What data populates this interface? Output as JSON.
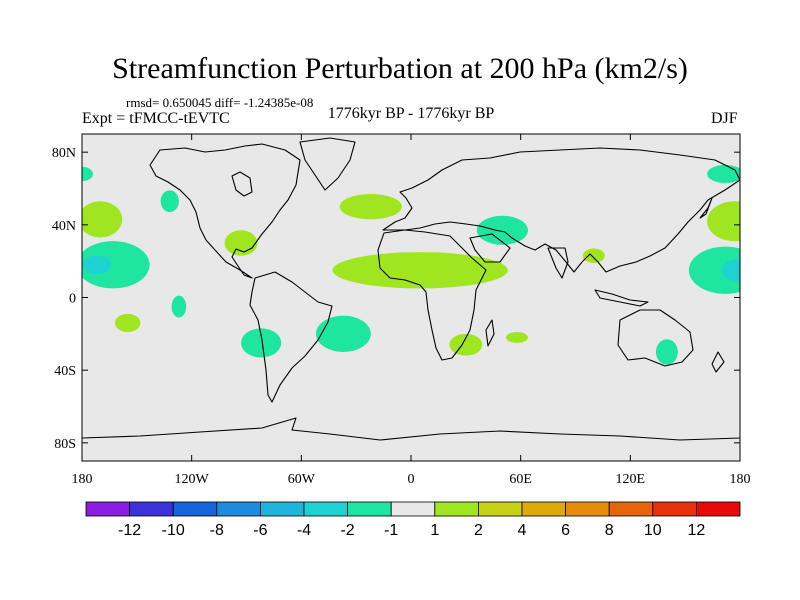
{
  "title": "Streamfunction Perturbation at 200 hPa (km2/s)",
  "stats": {
    "text": "rmsd= 0.650045 diff= -1.24385e-08"
  },
  "left_label": "Expt = tFMCC-tEVTC",
  "center_label": "1776kyr BP - 1776kyr BP",
  "right_label": "DJF",
  "colors": {
    "ocean_land_fill": "#e8e8e8",
    "neutral": "#e8e8e8",
    "positive_light": "#a0e020",
    "negative_light": "#20e0a0",
    "negative_mid": "#20d0d0",
    "outline": "#000000"
  },
  "axes": {
    "lon_ticks": [
      {
        "value": -180,
        "label": "180"
      },
      {
        "value": -120,
        "label": "120W"
      },
      {
        "value": -60,
        "label": "60W"
      },
      {
        "value": 0,
        "label": "0"
      },
      {
        "value": 60,
        "label": "60E"
      },
      {
        "value": 120,
        "label": "120E"
      },
      {
        "value": 180,
        "label": "180"
      }
    ],
    "lat_ticks": [
      {
        "value": 80,
        "label": "80N"
      },
      {
        "value": 40,
        "label": "40N"
      },
      {
        "value": 0,
        "label": "0"
      },
      {
        "value": -40,
        "label": "40S"
      },
      {
        "value": -80,
        "label": "80S"
      }
    ],
    "lon_range": [
      -180,
      180
    ],
    "lat_range": [
      -90,
      90
    ]
  },
  "chart_data": {
    "type": "heatmap",
    "title": "Streamfunction Perturbation at 200 hPa (km2/s)",
    "projection": "cylindrical equidistant",
    "season": "DJF",
    "contour_levels": [
      -12,
      -10,
      -8,
      -6,
      -4,
      -2,
      -1,
      1,
      2,
      4,
      6,
      8,
      10,
      12
    ],
    "colorbar_colors": [
      "#8a1ee0",
      "#3c32dc",
      "#1464dc",
      "#1e8cdc",
      "#1eb4dc",
      "#1ed2d2",
      "#1ee6a0",
      "#e8e8e8",
      "#a0e620",
      "#c8d214",
      "#dcaa0a",
      "#e68c0a",
      "#e6640a",
      "#e6320a",
      "#e60a0a"
    ],
    "colorbar_labels": [
      "-12",
      "-10",
      "-8",
      "-6",
      "-4",
      "-2",
      "-1",
      "1",
      "2",
      "4",
      "6",
      "8",
      "10",
      "12"
    ],
    "blobs": [
      {
        "name": "n-pacific-west-high",
        "lon": -170,
        "lat": 43,
        "rlon": 12,
        "rlat": 10,
        "level": "1 to 2"
      },
      {
        "name": "c-pacific-low",
        "lon": -163,
        "lat": 18,
        "rlon": 20,
        "rlat": 13,
        "level": "-2 to -1"
      },
      {
        "name": "c-pacific-low-core",
        "lon": -172,
        "lat": 18,
        "rlon": 8,
        "rlat": 5,
        "level": "-4 to -2"
      },
      {
        "name": "n-america-low",
        "lon": -132,
        "lat": 53,
        "rlon": 5,
        "rlat": 6,
        "level": "-2 to -1"
      },
      {
        "name": "gulf-high",
        "lon": -93,
        "lat": 30,
        "rlon": 9,
        "rlat": 7,
        "level": "1 to 2"
      },
      {
        "name": "e-pacific-low",
        "lon": -127,
        "lat": -5,
        "rlon": 4,
        "rlat": 6,
        "level": "-2 to -1"
      },
      {
        "name": "s-pacific-high",
        "lon": -155,
        "lat": -14,
        "rlon": 7,
        "rlat": 5,
        "level": "1 to 2"
      },
      {
        "name": "s-america-low",
        "lon": -82,
        "lat": -25,
        "rlon": 11,
        "rlat": 8,
        "level": "-2 to -1"
      },
      {
        "name": "s-atlantic-low",
        "lon": -37,
        "lat": -20,
        "rlon": 15,
        "rlat": 10,
        "level": "-2 to -1"
      },
      {
        "name": "n-atlantic-high",
        "lon": -22,
        "lat": 50,
        "rlon": 17,
        "rlat": 7,
        "level": "1 to 2"
      },
      {
        "name": "tropical-atlantic-high",
        "lon": 5,
        "lat": 15,
        "rlon": 48,
        "rlat": 10,
        "level": "1 to 2"
      },
      {
        "name": "mediterranean-low",
        "lon": 50,
        "lat": 37,
        "rlon": 14,
        "rlat": 8,
        "level": "-2 to -1"
      },
      {
        "name": "india-high",
        "lon": 100,
        "lat": 23,
        "rlon": 6,
        "rlat": 4,
        "level": "1 to 2"
      },
      {
        "name": "s-africa-high",
        "lon": 30,
        "lat": -26,
        "rlon": 9,
        "rlat": 6,
        "level": "1 to 2"
      },
      {
        "name": "madagascar-high",
        "lon": 58,
        "lat": -22,
        "rlon": 6,
        "rlat": 3,
        "level": "1 to 2"
      },
      {
        "name": "australia-low",
        "lon": 140,
        "lat": -30,
        "rlon": 6,
        "rlat": 7,
        "level": "-2 to -1"
      },
      {
        "name": "n-pacific-east-high",
        "lon": 177,
        "lat": 42,
        "rlon": 15,
        "rlat": 11,
        "level": "1 to 2"
      },
      {
        "name": "w-pacific-low",
        "lon": 172,
        "lat": 15,
        "rlon": 20,
        "rlat": 13,
        "level": "-2 to -1"
      },
      {
        "name": "w-pacific-low-core",
        "lon": 178,
        "lat": 15,
        "rlon": 8,
        "rlat": 6,
        "level": "-4 to -2"
      },
      {
        "name": "arctic-east-low",
        "lon": 172,
        "lat": 68,
        "rlon": 10,
        "rlat": 5,
        "level": "-2 to -1"
      },
      {
        "name": "arctic-west-low",
        "lon": -180,
        "lat": 68,
        "rlon": 6,
        "rlat": 4,
        "level": "-2 to -1"
      }
    ]
  }
}
